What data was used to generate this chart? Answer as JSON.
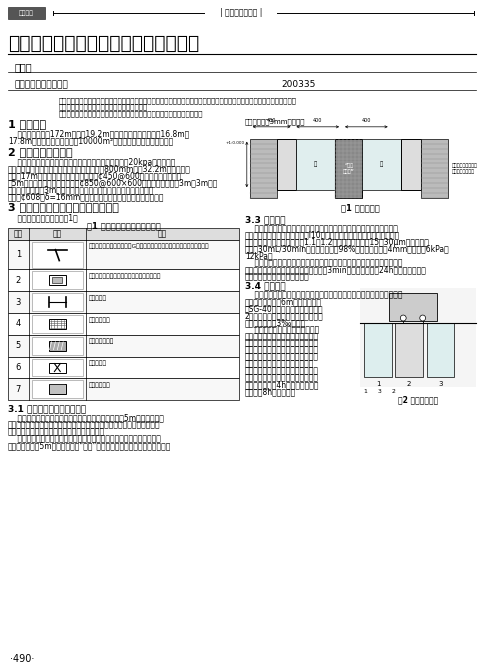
{
  "title": "超深基坑围护结构地下连续墙施工技术",
  "header_label": "建筑钓筋",
  "header_section": "施工技术与应用",
  "author": "王祥云",
  "company": "旭辉集团股份有限公司",
  "article_id": "200335",
  "page_number": "490",
  "bg_color": "#ffffff"
}
